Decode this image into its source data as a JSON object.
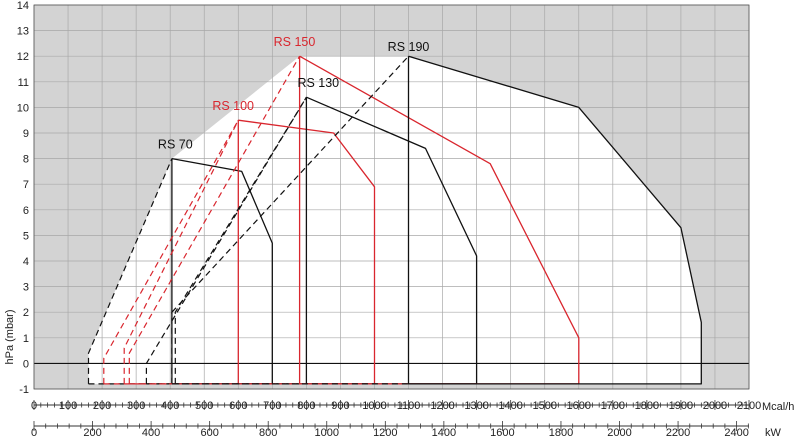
{
  "chart_data": {
    "type": "line",
    "title": "",
    "ylabel": "hPa (mbar)",
    "xlabel_top": "Mcal/h",
    "xlabel_bottom": "kW",
    "ylim": [
      -1,
      14
    ],
    "xlim_mcal": [
      0,
      2100
    ],
    "y_ticks": [
      "-1",
      "0",
      "1",
      "2",
      "3",
      "4",
      "5",
      "6",
      "7",
      "8",
      "9",
      "10",
      "11",
      "12",
      "13",
      "14"
    ],
    "x_ticks_mcal": [
      "0",
      "100",
      "200",
      "300",
      "400",
      "500",
      "600",
      "700",
      "800",
      "900",
      "1000",
      "1100",
      "1200",
      "1300",
      "1400",
      "1500",
      "1600",
      "1700",
      "1800",
      "1900",
      "2000",
      "2100"
    ],
    "x_ticks_kw": [
      "0",
      "200",
      "400",
      "600",
      "800",
      "1000",
      "1200",
      "1400",
      "1600",
      "1800",
      "2000",
      "2200",
      "2400"
    ],
    "colors": {
      "black_series": "#111111",
      "red_series": "#d9262e",
      "shaded": "#d3d3d3"
    },
    "series": [
      {
        "name": "RS 70",
        "color": "#111111",
        "solid": [
          [
            405,
            8.0
          ],
          [
            610,
            7.5
          ],
          [
            700,
            4.7
          ],
          [
            700,
            -0.8
          ],
          [
            405,
            -0.8
          ],
          [
            405,
            8.0
          ]
        ],
        "dashed": [
          [
            160,
            -0.8
          ],
          [
            160,
            0.4
          ],
          [
            405,
            8.0
          ]
        ],
        "dashed_inner": [
          [
            405,
            -0.8
          ],
          [
            405,
            2.0
          ]
        ]
      },
      {
        "name": "RS 100",
        "color": "#d9262e",
        "solid": [
          [
            600,
            9.5
          ],
          [
            880,
            9.0
          ],
          [
            1000,
            6.9
          ],
          [
            1000,
            -0.8
          ],
          [
            600,
            -0.8
          ],
          [
            600,
            9.5
          ]
        ],
        "dashed": [
          [
            205,
            -0.8
          ],
          [
            205,
            0.2
          ],
          [
            600,
            9.5
          ]
        ],
        "dashed_inner": [
          [
            265,
            -0.8
          ],
          [
            265,
            0.6
          ],
          [
            600,
            9.5
          ]
        ]
      },
      {
        "name": "RS 130",
        "color": "#111111",
        "solid": [
          [
            800,
            10.4
          ],
          [
            1150,
            8.4
          ],
          [
            1300,
            4.2
          ],
          [
            1300,
            -0.8
          ],
          [
            800,
            -0.8
          ],
          [
            800,
            10.4
          ]
        ],
        "dashed": [
          [
            330,
            -0.8
          ],
          [
            330,
            0.0
          ],
          [
            800,
            10.4
          ]
        ],
        "dashed_inner": [
          [
            415,
            -0.8
          ],
          [
            415,
            2.0
          ],
          [
            800,
            10.4
          ]
        ]
      },
      {
        "name": "RS 150",
        "color": "#d9262e",
        "solid": [
          [
            780,
            12.0
          ],
          [
            1340,
            7.8
          ],
          [
            1600,
            1.0
          ],
          [
            1600,
            -0.8
          ],
          [
            780,
            -0.8
          ],
          [
            780,
            12.0
          ]
        ],
        "dashed": [
          [
            280,
            -0.8
          ],
          [
            280,
            0.4
          ],
          [
            780,
            12.0
          ]
        ],
        "dashed_inner": []
      },
      {
        "name": "RS 190",
        "color": "#111111",
        "solid": [
          [
            1100,
            12.0
          ],
          [
            1600,
            10.0
          ],
          [
            1900,
            5.3
          ],
          [
            1960,
            1.6
          ],
          [
            1960,
            -0.8
          ],
          [
            1100,
            -0.8
          ],
          [
            1100,
            12.0
          ]
        ],
        "dashed": [
          [
            405,
            2.0
          ],
          [
            1100,
            12.0
          ]
        ],
        "dashed_inner": []
      }
    ],
    "labels": [
      {
        "text": "RS 70",
        "x": 415,
        "y": 8.4,
        "color": "#111111"
      },
      {
        "text": "RS 100",
        "x": 585,
        "y": 9.9,
        "color": "#d9262e"
      },
      {
        "text": "RS 130",
        "x": 835,
        "y": 10.8,
        "color": "#111111"
      },
      {
        "text": "RS 150",
        "x": 765,
        "y": 12.4,
        "color": "#d9262e"
      },
      {
        "text": "RS 190",
        "x": 1100,
        "y": 12.2,
        "color": "#111111"
      }
    ]
  }
}
